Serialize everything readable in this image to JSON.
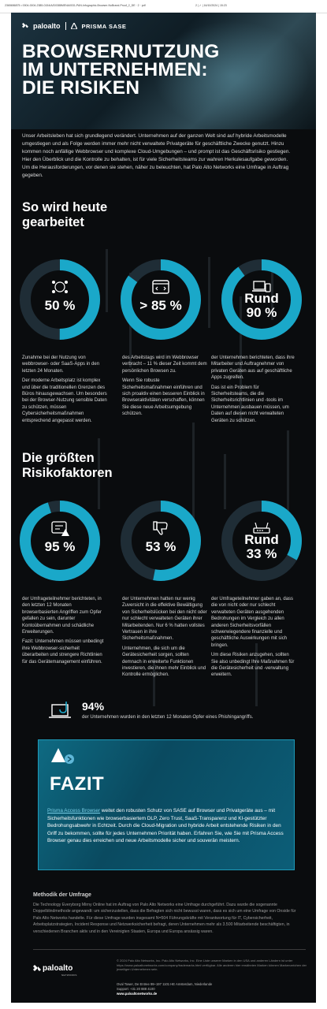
{
  "print_strip": {
    "left": "2365656875 • 0004-0004-2385-0154/A/D0388MENA0031-PAN-Infographic-Browser-NoBrand-Proof_2_DE · 2 · pdf",
    "mid": "2  |  ✓  |  16/10/2024  |  15:23"
  },
  "header": {
    "logo": "paloalto",
    "partner_logo": "PRISMA SASE",
    "title_line1": "BROWSERNUTZUNG",
    "title_line2": "IM UNTERNEHMEN:",
    "title_line3": "DIE RISIKEN"
  },
  "intro": "Unser Arbeitsleben hat sich grundlegend verändert. Unternehmen auf der ganzen Welt sind auf hybride Arbeitsmodelle umgestiegen und als Folge werden immer mehr nicht verwaltete Privatgeräte für geschäftliche Zwecke genutzt. Hinzu kommen noch anfällige Webbrowser und komplexe Cloud-Umgebungen – und prompt ist das Geschäftsrisiko gestiegen. Hier den Überblick und die Kontrolle zu behalten, ist für viele Sicherheitsteams zur wahren Herkulesaufgabe geworden. Um die Herausforderungen, vor denen sie stehen, näher zu beleuchten, hat Palo Alto Networks eine Umfrage in Auftrag gegeben.",
  "section1": {
    "heading_line1": "So wird heute",
    "heading_line2": "gearbeitet",
    "stats": [
      {
        "value": "50 %",
        "icon": "cloud-apps-icon",
        "fraction": 0.5,
        "paragraphs": [
          "Zunahme bei der Nutzung von webbrowser- oder SaaS-Apps in den letzten 24 Monaten.",
          "Der moderne Arbeitsplatz ist komplex und über die traditionellen Grenzen des Büros hinausgewachsen. Um besonders bei der Browser-Nutzung sensible Daten zu schützen, müssen Cybersicherheitsmaßnahmen entsprechend angepasst werden."
        ]
      },
      {
        "value": "> 85 %",
        "icon": "browser-window-icon",
        "fraction": 0.85,
        "paragraphs": [
          "des Arbeitstags wird im Webbrowser verbracht – 11 % dieser Zeit kommt dem persönlichen Browsen zu.",
          "Wenn Sie robuste Sicherheitsmaßnahmen einführen und sich proaktiv einen besseren Einblick in Browseraktivitäten verschaffen, können Sie diese neue Arbeitsumgebung schützen."
        ]
      },
      {
        "value_line1": "Rund",
        "value_line2": "90 %",
        "icon": "devices-icon",
        "fraction": 0.9,
        "paragraphs": [
          "der Unternehmen berichteten, dass ihre Mitarbeiter und Auftragnehmer von privaten Geräten aus auf geschäftliche Apps zugreifen.",
          "Das ist ein Problem für Sicherheitsteams, die die Sicherheitsrichtlinien und -tools im Unternehmen ausbauen müssen, um Daten auf diesen nicht verwalteten Geräten zu schützen."
        ]
      }
    ]
  },
  "section2": {
    "heading_line1": "Die größten",
    "heading_line2": "Risikofaktoren",
    "stats": [
      {
        "value": "95 %",
        "icon": "warning-window-icon",
        "fraction": 0.95,
        "paragraphs": [
          "der Umfrageteilnehmer berichteten, in den letzten 12 Monaten browserbasierten Angriffen zum Opfer gefallen zu sein, darunter Kontoübernahmen und schädliche Erweiterungen.",
          "Fazit: Unternehmen müssen unbedingt ihre Webbrowser-sicherheit überarbeiten und strengere Richtlinien für das Gerätemanagement einführen."
        ]
      },
      {
        "value": "53 %",
        "icon": "thumbs-down-icon",
        "fraction": 0.53,
        "paragraphs": [
          "der Unternehmen hatten nur wenig Zuversicht in die effektive Bewältigung von Sicherheitslücken bei den nicht oder nur schlecht verwalteten Geräten ihrer Mitarbeitenden. Nur 6 % hatten vollstes Vertrauen in ihre Sicherheitsmaßnahmen.",
          "Unternehmen, die sich um die Gerätesicherheit sorgen, sollten demnach in erweiterte Funktionen investieren, die ihnen mehr Einblick und Kontrolle ermöglichen."
        ]
      },
      {
        "value_line1": "Rund",
        "value_line2": "33 %",
        "icon": "router-icon",
        "fraction": 0.33,
        "paragraphs": [
          "der Umfrageteilnehmer gaben an, dass die von nicht oder nur schlecht verwalteten Geräten ausgehenden Bedrohungen im Vergleich zu allen anderen Sicherheitsvorfällen schwerwiegendere finanzielle und geschäftliche Auswirkungen mit sich bringen.",
          "Um diese Risiken anzugehen, sollten Sie also unbedingt Ihre Maßnahmen für die Gerätesicherheit und -verwaltung erweitern."
        ]
      }
    ],
    "phishing": {
      "value": "94%",
      "icon": "phishing-hook-icon",
      "text": "der Unternehmen wurden in den letzten 12 Monaten Opfer eines Phishingangriffs."
    }
  },
  "fazit": {
    "icon": "prisma-access-logo-icon",
    "title": "FAZIT",
    "link_text": "Prisma Access Browser",
    "text": " weitet den robusten Schutz von SASE auf Browser und Privatgeräte aus – mit Sicherheitsfunktionen wie browserbasiertem DLP, Zero Trust, SaaS-Transparenz und KI-gestützter Bedrohungsabwehr in Echtzeit. Durch die Cloud-Migration und hybride Arbeit entstehende Risiken in den Griff zu bekommen, sollte für jedes Unternehmen Priorität haben. Erfahren Sie, wie Sie mit Prisma Access Browser genau dies erreichen und neue Arbeitsmodelle sicher und souverän meistern."
  },
  "methodology": {
    "heading": "Methodik der Umfrage",
    "text": "Die Technology Everyborg Mirny Online hat im Auftrag von Palo Alto Networks eine Umfrage durchgeführt. Dazu wurde die sogenannte Doppelblindmethode angewandt: um sicherzustellen, dass die Befragten sich nicht bewusst waren, dass es sich um eine Umfrage von Onside für Palo Alto Networks handelte. Für diese Umfrage wurden insgesamt N=504 Führungskräfte mit Verantwortung für IT, Cybersicherheit, Arbeitsplatzstrategien, Incident Response und Netzwerksicherheit befragt, deren Unternehmen mehr als 3.500 Mitarbeitende beschäftigten, in verschiedenen Branchen aktiv und in den Vereinigten Staaten, Europa und Europa ansässig waren."
  },
  "footer": {
    "logo": "paloalto",
    "logo_sub": "NETWORKS",
    "legal": "© 2024 Palo Alto Networks, Inc. Palo Alto Networks, Inc. Eine Liste unserer Marken in den USA und anderen Ländern ist unter https://www.paloaltonetworks.com/company/trademarks.html verfügbar. Alle anderen hier erwähnten Marken können Markenzeichen der jeweiligen Unternehmen sein.",
    "address": "Oval Tower, De Entree 99–197 1101 HE Amsterdam, Niederlande",
    "support": "Support: +31 20 888 4100",
    "website": "www.paloaltonetworks.de"
  },
  "colors": {
    "background": "#0a0c0e",
    "ring_track": "#1f2d36",
    "ring_accent": "#1aa8c9",
    "fazit_bg": "#0c5e78",
    "link": "#7ad0e8"
  }
}
